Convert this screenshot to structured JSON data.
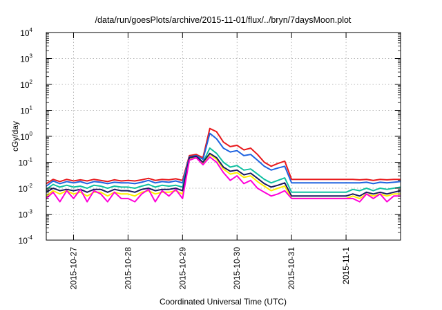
{
  "chart_data": {
    "type": "line",
    "title": "/data/run/goesPlots/archive/2015-11-01/flux/../bryn/7daysMoon.plot",
    "xlabel": "Coordinated Universal Time (UTC)",
    "ylabel": "cGy/day",
    "y_scale": "log",
    "ylim_exp": [
      -4,
      4
    ],
    "y_ticks": [
      {
        "base": "10",
        "exp": "-4"
      },
      {
        "base": "10",
        "exp": "-3"
      },
      {
        "base": "10",
        "exp": "-2"
      },
      {
        "base": "10",
        "exp": "-1"
      },
      {
        "base": "10",
        "exp": "0"
      },
      {
        "base": "10",
        "exp": "1"
      },
      {
        "base": "10",
        "exp": "2"
      },
      {
        "base": "10",
        "exp": "3"
      },
      {
        "base": "10",
        "exp": "4"
      }
    ],
    "xlim": [
      "2015-10-26T12:00",
      "2015-11-02T00:00"
    ],
    "x_ticks": [
      "2015-10-27",
      "2015-10-28",
      "2015-10-29",
      "2015-10-30",
      "2015-10-31",
      "2015-11-1"
    ],
    "x_tick_dates": [
      "2015-10-27",
      "2015-10-28",
      "2015-10-29",
      "2015-10-30",
      "2015-10-31",
      "2015-11-01"
    ],
    "grid": true,
    "x": [
      "2015-10-26T12:00",
      "2015-10-26T15:00",
      "2015-10-26T18:00",
      "2015-10-26T21:00",
      "2015-10-27T00:00",
      "2015-10-27T03:00",
      "2015-10-27T06:00",
      "2015-10-27T09:00",
      "2015-10-27T12:00",
      "2015-10-27T15:00",
      "2015-10-27T18:00",
      "2015-10-27T21:00",
      "2015-10-28T00:00",
      "2015-10-28T03:00",
      "2015-10-28T06:00",
      "2015-10-28T09:00",
      "2015-10-28T12:00",
      "2015-10-28T15:00",
      "2015-10-28T18:00",
      "2015-10-28T21:00",
      "2015-10-29T00:00",
      "2015-10-29T03:00",
      "2015-10-29T06:00",
      "2015-10-29T09:00",
      "2015-10-29T12:00",
      "2015-10-29T15:00",
      "2015-10-29T18:00",
      "2015-10-29T21:00",
      "2015-10-30T00:00",
      "2015-10-30T03:00",
      "2015-10-30T06:00",
      "2015-10-30T09:00",
      "2015-10-30T12:00",
      "2015-10-30T15:00",
      "2015-10-30T18:00",
      "2015-10-30T21:00",
      "2015-10-31T00:00",
      "2015-10-31T12:00",
      "2015-11-01T00:00",
      "2015-11-01T03:00",
      "2015-11-01T06:00",
      "2015-11-01T09:00",
      "2015-11-01T12:00",
      "2015-11-01T15:00",
      "2015-11-01T18:00",
      "2015-11-01T21:00",
      "2015-11-02T00:00"
    ],
    "series": [
      {
        "color": "#e8191c",
        "values": [
          0.015,
          0.022,
          0.018,
          0.022,
          0.019,
          0.021,
          0.019,
          0.022,
          0.02,
          0.018,
          0.021,
          0.019,
          0.02,
          0.019,
          0.021,
          0.024,
          0.02,
          0.022,
          0.021,
          0.023,
          0.02,
          0.18,
          0.2,
          0.15,
          2.0,
          1.5,
          0.6,
          0.4,
          0.45,
          0.3,
          0.35,
          0.2,
          0.1,
          0.07,
          0.09,
          0.11,
          0.022,
          0.022,
          0.022,
          0.022,
          0.021,
          0.022,
          0.02,
          0.022,
          0.021,
          0.022,
          0.022
        ]
      },
      {
        "color": "#1f63e0",
        "values": [
          0.012,
          0.019,
          0.015,
          0.018,
          0.016,
          0.018,
          0.015,
          0.018,
          0.017,
          0.015,
          0.017,
          0.016,
          0.016,
          0.015,
          0.017,
          0.02,
          0.016,
          0.018,
          0.017,
          0.019,
          0.016,
          0.16,
          0.18,
          0.13,
          1.3,
          0.8,
          0.35,
          0.25,
          0.28,
          0.18,
          0.2,
          0.12,
          0.07,
          0.05,
          0.06,
          0.07,
          0.016,
          0.016,
          0.016,
          0.016,
          0.016,
          0.017,
          0.015,
          0.017,
          0.016,
          0.017,
          0.018
        ]
      },
      {
        "color": "#10c0a0",
        "values": [
          0.009,
          0.014,
          0.011,
          0.013,
          0.011,
          0.012,
          0.01,
          0.013,
          0.012,
          0.01,
          0.012,
          0.011,
          0.011,
          0.01,
          0.012,
          0.014,
          0.011,
          0.013,
          0.012,
          0.013,
          0.011,
          0.14,
          0.17,
          0.1,
          0.35,
          0.22,
          0.1,
          0.065,
          0.075,
          0.05,
          0.055,
          0.035,
          0.022,
          0.016,
          0.02,
          0.025,
          0.007,
          0.007,
          0.007,
          0.009,
          0.008,
          0.01,
          0.008,
          0.01,
          0.009,
          0.01,
          0.011
        ]
      },
      {
        "color": "#ffee00",
        "values": [
          0.005,
          0.008,
          0.006,
          0.008,
          0.006,
          0.007,
          0.005,
          0.007,
          0.007,
          0.005,
          0.007,
          0.006,
          0.006,
          0.005,
          0.007,
          0.008,
          0.006,
          0.007,
          0.007,
          0.008,
          0.006,
          0.13,
          0.15,
          0.09,
          0.2,
          0.13,
          0.055,
          0.035,
          0.04,
          0.026,
          0.03,
          0.018,
          0.012,
          0.008,
          0.01,
          0.012,
          0.004,
          0.004,
          0.004,
          0.005,
          0.004,
          0.006,
          0.005,
          0.006,
          0.005,
          0.006,
          0.006
        ]
      },
      {
        "color": "#1a1a60",
        "values": [
          0.007,
          0.01,
          0.008,
          0.009,
          0.008,
          0.009,
          0.007,
          0.009,
          0.009,
          0.007,
          0.009,
          0.008,
          0.008,
          0.007,
          0.009,
          0.01,
          0.008,
          0.009,
          0.009,
          0.01,
          0.008,
          0.15,
          0.17,
          0.1,
          0.22,
          0.15,
          0.065,
          0.045,
          0.05,
          0.033,
          0.038,
          0.024,
          0.015,
          0.011,
          0.013,
          0.016,
          0.005,
          0.005,
          0.005,
          0.006,
          0.005,
          0.007,
          0.006,
          0.007,
          0.006,
          0.007,
          0.008
        ]
      },
      {
        "color": "#ff00d8",
        "values": [
          0.004,
          0.007,
          0.003,
          0.008,
          0.004,
          0.009,
          0.003,
          0.008,
          0.006,
          0.003,
          0.007,
          0.004,
          0.004,
          0.003,
          0.006,
          0.009,
          0.003,
          0.008,
          0.005,
          0.009,
          0.004,
          0.12,
          0.15,
          0.08,
          0.16,
          0.1,
          0.04,
          0.02,
          0.03,
          0.015,
          0.02,
          0.01,
          0.007,
          0.005,
          0.006,
          0.008,
          0.004,
          0.004,
          0.004,
          0.004,
          0.003,
          0.006,
          0.004,
          0.006,
          0.003,
          0.005,
          0.005
        ]
      }
    ]
  }
}
